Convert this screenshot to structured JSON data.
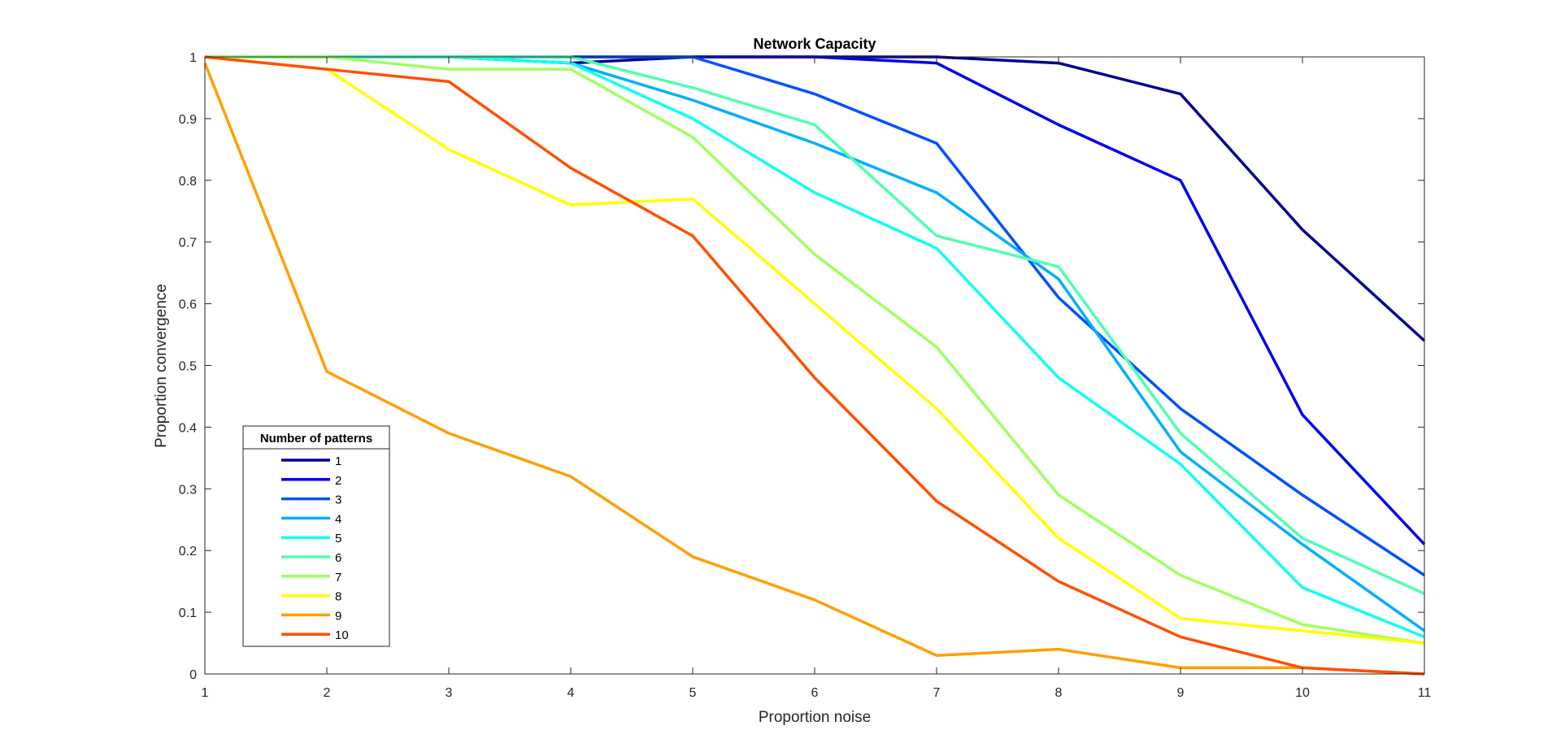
{
  "chart_data": {
    "type": "line",
    "title": "Network Capacity",
    "xlabel": "Proportion noise",
    "ylabel": "Proportion convergence",
    "xlim": [
      1,
      11
    ],
    "ylim": [
      0,
      1
    ],
    "x": [
      1,
      2,
      3,
      4,
      5,
      6,
      7,
      8,
      9,
      10,
      11
    ],
    "xticks": [
      "1",
      "2",
      "3",
      "4",
      "5",
      "6",
      "7",
      "8",
      "9",
      "10",
      "11"
    ],
    "yticks": [
      "0",
      "0.1",
      "0.2",
      "0.3",
      "0.4",
      "0.5",
      "0.6",
      "0.7",
      "0.8",
      "0.9",
      "1"
    ],
    "grid": false,
    "legend": {
      "title": "Number of patterns",
      "placement": "bottom-left"
    },
    "series": [
      {
        "name": "1",
        "color": "#00008f",
        "values": [
          1,
          1,
          1,
          0.99,
          1,
          1,
          1,
          0.99,
          0.94,
          0.72,
          0.54
        ]
      },
      {
        "name": "2",
        "color": "#0000ef",
        "values": [
          1,
          1,
          1,
          1,
          1,
          1,
          0.99,
          0.89,
          0.8,
          0.42,
          0.21
        ]
      },
      {
        "name": "3",
        "color": "#0050ff",
        "values": [
          1,
          1,
          1,
          1,
          1,
          0.94,
          0.86,
          0.61,
          0.43,
          0.29,
          0.16
        ]
      },
      {
        "name": "4",
        "color": "#00afff",
        "values": [
          1,
          1,
          1,
          0.99,
          0.93,
          0.86,
          0.78,
          0.64,
          0.36,
          0.21,
          0.07
        ]
      },
      {
        "name": "5",
        "color": "#10ffef",
        "values": [
          1,
          1,
          1,
          0.99,
          0.9,
          0.78,
          0.69,
          0.48,
          0.34,
          0.14,
          0.06
        ]
      },
      {
        "name": "6",
        "color": "#50ffaf",
        "values": [
          1,
          1,
          1,
          1,
          0.95,
          0.89,
          0.71,
          0.66,
          0.39,
          0.22,
          0.13
        ]
      },
      {
        "name": "7",
        "color": "#a0ff60",
        "values": [
          1,
          1,
          0.98,
          0.98,
          0.87,
          0.68,
          0.53,
          0.29,
          0.16,
          0.08,
          0.05
        ]
      },
      {
        "name": "8",
        "color": "#ffff00",
        "values": [
          1,
          0.98,
          0.85,
          0.76,
          0.77,
          0.6,
          0.43,
          0.22,
          0.09,
          0.07,
          0.05
        ]
      },
      {
        "name": "9",
        "color": "#ffa000",
        "values": [
          0.99,
          0.49,
          0.39,
          0.32,
          0.19,
          0.12,
          0.03,
          0.04,
          0.01,
          0.01,
          0
        ]
      },
      {
        "name": "10",
        "color": "#ff5000",
        "values": [
          1,
          0.98,
          0.96,
          0.82,
          0.71,
          0.48,
          0.28,
          0.15,
          0.06,
          0.01,
          0
        ]
      }
    ]
  }
}
